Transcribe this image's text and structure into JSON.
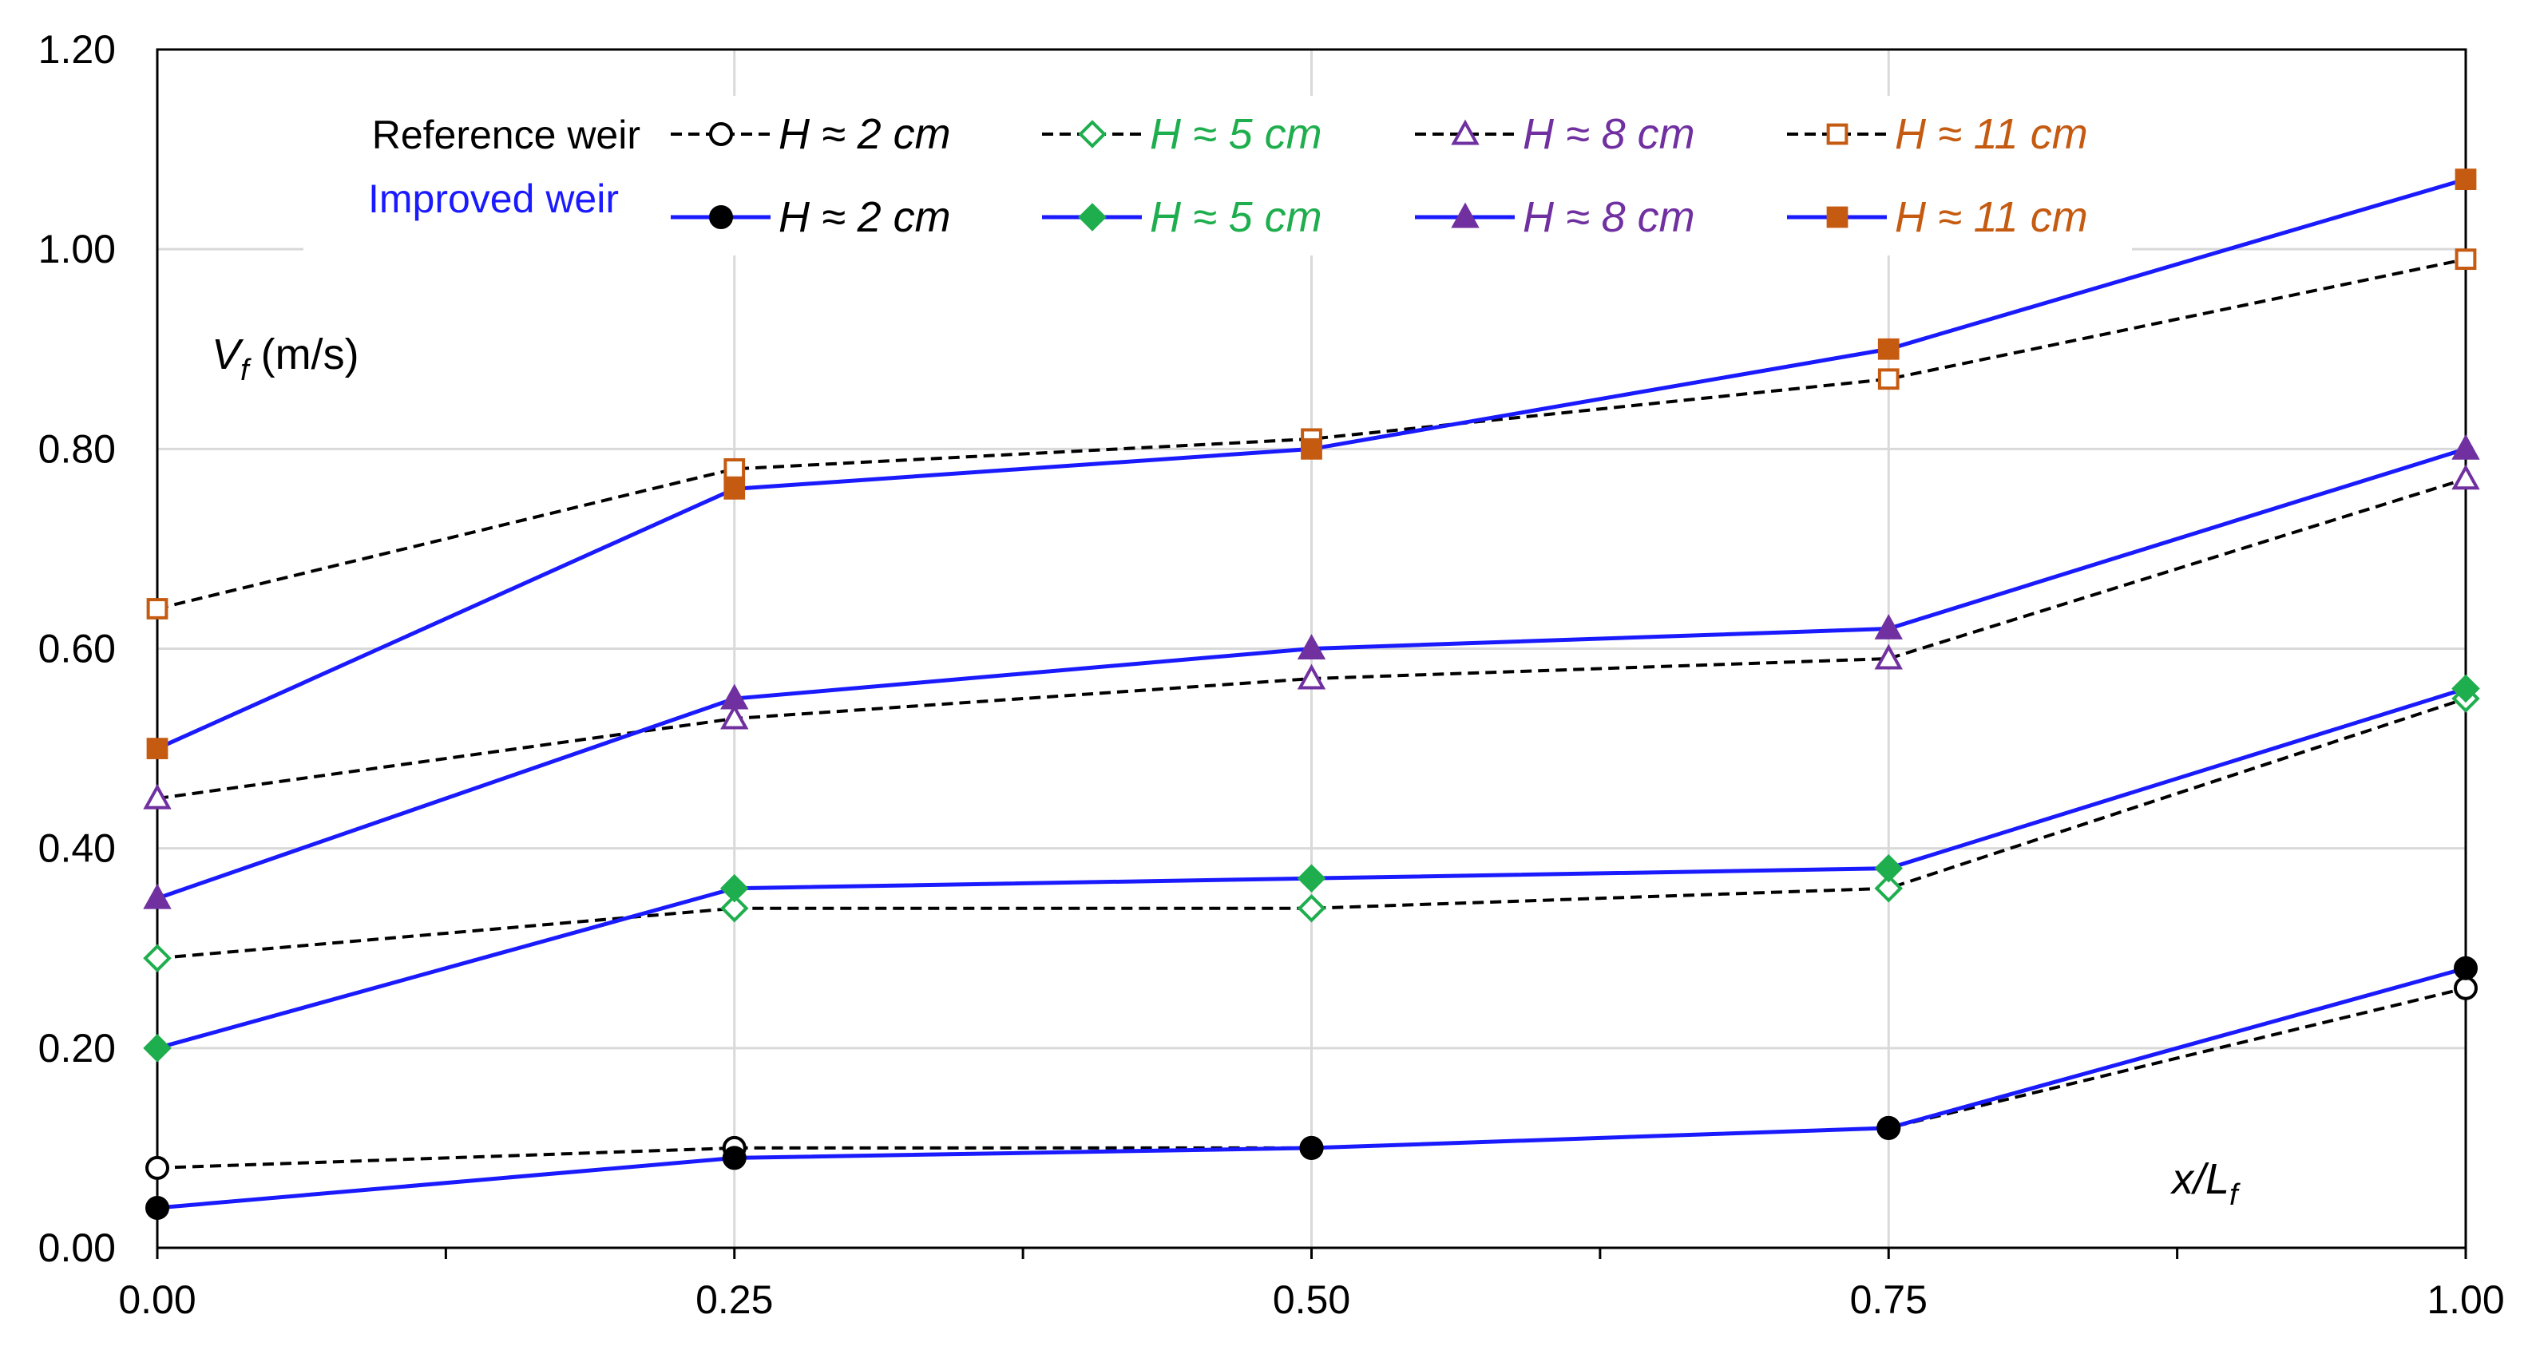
{
  "chart_data": {
    "type": "line",
    "title": "",
    "xlabel": "x/Lf",
    "xlabel_parts": {
      "main": "x/L",
      "sub": "f"
    },
    "ylabel": "Vf (m/s)",
    "ylabel_parts": {
      "main": "V",
      "sub": "f",
      "unit": " (m/s)"
    },
    "x": [
      0.0,
      0.25,
      0.5,
      0.75,
      1.0
    ],
    "xlim": [
      0,
      1
    ],
    "ylim": [
      0,
      1.2
    ],
    "x_ticks": [
      "0.00",
      "0.25",
      "0.50",
      "0.75",
      "1.00"
    ],
    "y_ticks": [
      "0.00",
      "0.20",
      "0.40",
      "0.60",
      "0.80",
      "1.00",
      "1.20"
    ],
    "grid": true,
    "legend_groups": {
      "reference": "Reference weir",
      "improved": "Improved weir"
    },
    "legend_colors": {
      "reference": "#000000",
      "improved": "#1a1aff"
    },
    "series": [
      {
        "name": "H ≈ 2 cm",
        "group": "reference",
        "marker": "circle-open",
        "line": "dashed",
        "line_color": "#000000",
        "marker_color": "#000000",
        "label_color": "#000000",
        "values": [
          0.08,
          0.1,
          0.1,
          0.12,
          0.26
        ]
      },
      {
        "name": "H ≈ 5 cm",
        "group": "reference",
        "marker": "diamond-open",
        "line": "dashed",
        "line_color": "#000000",
        "marker_color": "#1fae4e",
        "label_color": "#1fae4e",
        "values": [
          0.29,
          0.34,
          0.34,
          0.36,
          0.55
        ]
      },
      {
        "name": "H ≈ 8 cm",
        "group": "reference",
        "marker": "triangle-open",
        "line": "dashed",
        "line_color": "#000000",
        "marker_color": "#7030a0",
        "label_color": "#7030a0",
        "values": [
          0.45,
          0.53,
          0.57,
          0.59,
          0.77
        ]
      },
      {
        "name": "H ≈ 11 cm",
        "group": "reference",
        "marker": "square-open",
        "line": "dashed",
        "line_color": "#000000",
        "marker_color": "#c55a11",
        "label_color": "#c55a11",
        "values": [
          0.64,
          0.78,
          0.81,
          0.87,
          0.99
        ]
      },
      {
        "name": "H ≈ 2 cm",
        "group": "improved",
        "marker": "circle-filled",
        "line": "solid",
        "line_color": "#1a1aff",
        "marker_color": "#000000",
        "label_color": "#000000",
        "values": [
          0.04,
          0.09,
          0.1,
          0.12,
          0.28
        ]
      },
      {
        "name": "H ≈ 5 cm",
        "group": "improved",
        "marker": "diamond-filled",
        "line": "solid",
        "line_color": "#1a1aff",
        "marker_color": "#1fae4e",
        "label_color": "#1fae4e",
        "values": [
          0.2,
          0.36,
          0.37,
          0.38,
          0.56
        ]
      },
      {
        "name": "H ≈ 8 cm",
        "group": "improved",
        "marker": "triangle-filled",
        "line": "solid",
        "line_color": "#1a1aff",
        "marker_color": "#7030a0",
        "label_color": "#7030a0",
        "values": [
          0.35,
          0.55,
          0.6,
          0.62,
          0.8
        ]
      },
      {
        "name": "H ≈ 11 cm",
        "group": "improved",
        "marker": "square-filled",
        "line": "solid",
        "line_color": "#1a1aff",
        "marker_color": "#c55a11",
        "label_color": "#c55a11",
        "values": [
          0.5,
          0.76,
          0.8,
          0.9,
          1.07
        ]
      }
    ]
  }
}
